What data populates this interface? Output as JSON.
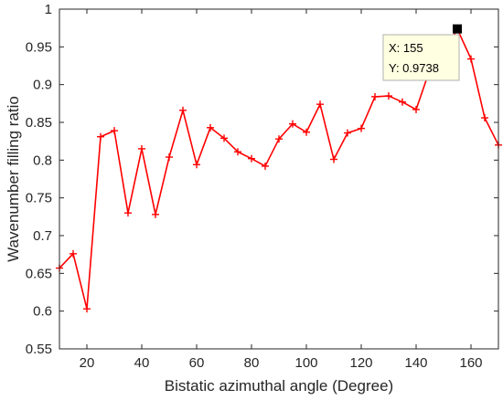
{
  "chart_data": {
    "type": "line",
    "title": "",
    "xlabel": "Bistatic azimuthal angle (Degree)",
    "ylabel": "Wavenumber filling ratio",
    "xlim": [
      10,
      170
    ],
    "ylim": [
      0.55,
      1
    ],
    "xticks": [
      20,
      40,
      60,
      80,
      100,
      120,
      140,
      160
    ],
    "yticks": [
      0.55,
      0.6,
      0.65,
      0.7,
      0.75,
      0.8,
      0.85,
      0.9,
      0.95,
      1
    ],
    "grid": false,
    "series": [
      {
        "color": "#ff0000",
        "marker": "plus",
        "x": [
          10,
          15,
          20,
          25,
          30,
          35,
          40,
          45,
          50,
          55,
          60,
          65,
          70,
          75,
          80,
          85,
          90,
          95,
          100,
          105,
          110,
          115,
          120,
          125,
          130,
          135,
          140,
          145,
          150,
          155,
          160,
          165,
          170
        ],
        "y": [
          0.657,
          0.676,
          0.603,
          0.831,
          0.839,
          0.73,
          0.815,
          0.728,
          0.804,
          0.866,
          0.794,
          0.843,
          0.829,
          0.811,
          0.802,
          0.792,
          0.828,
          0.848,
          0.837,
          0.874,
          0.801,
          0.836,
          0.842,
          0.884,
          0.885,
          0.877,
          0.867,
          0.92,
          0.94,
          0.9738,
          0.934,
          0.856,
          0.82
        ]
      }
    ],
    "datatip": {
      "x_label": "X: 155",
      "y_label": "Y: 0.9738",
      "x": 155,
      "y": 0.9738
    }
  }
}
